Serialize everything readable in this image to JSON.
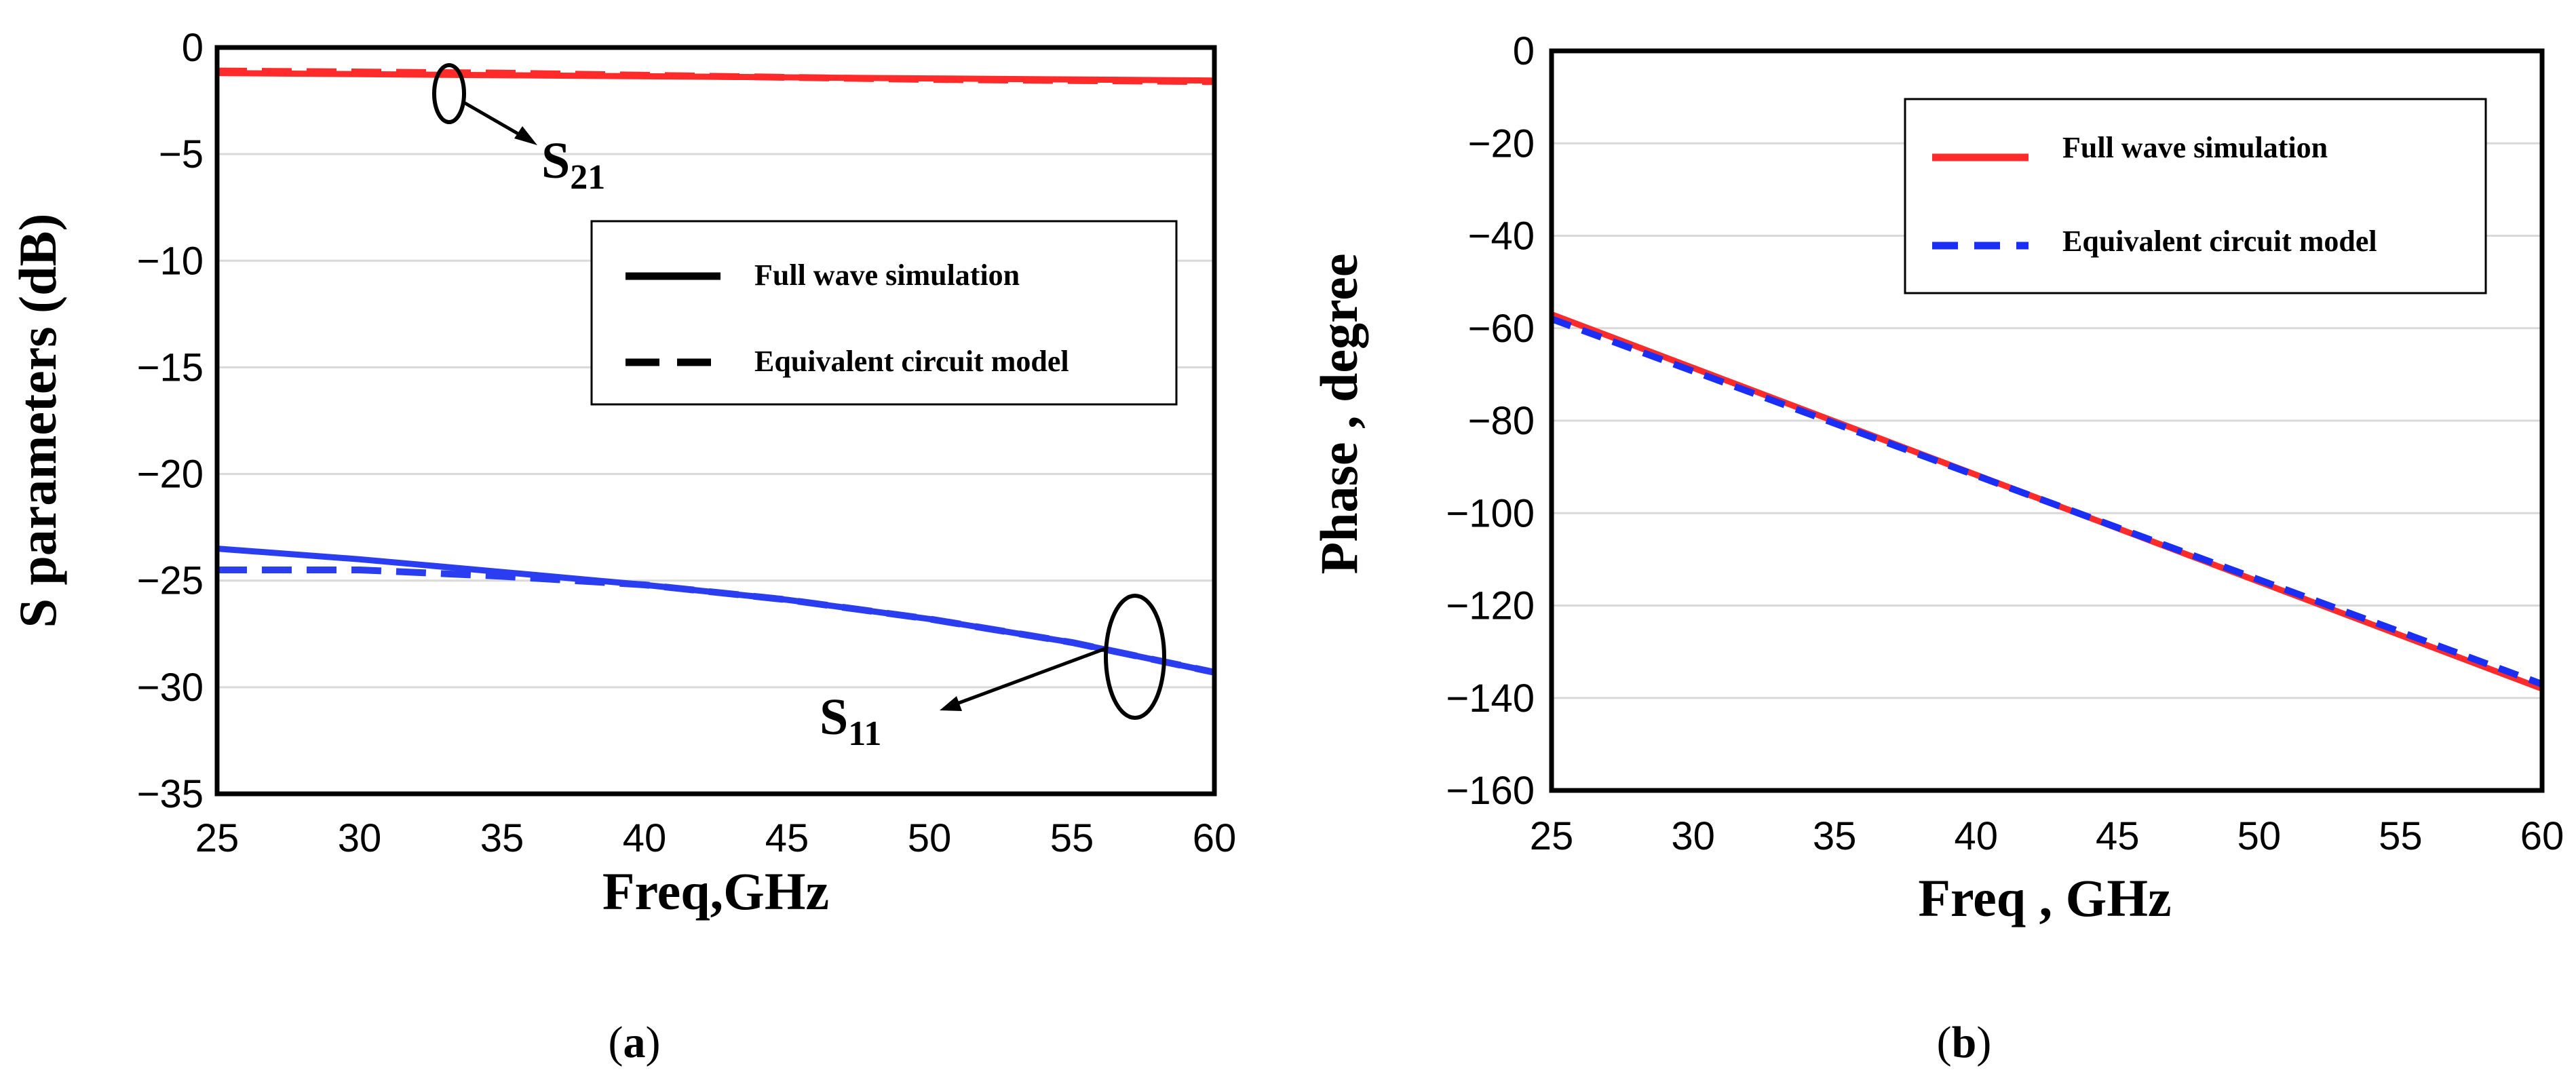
{
  "chart_data": [
    {
      "type": "line",
      "panel": "a",
      "caption_letter": "a",
      "xlabel": "Freq,GHz",
      "ylabel": "S parameters (dB)",
      "xlim": [
        25,
        60
      ],
      "ylim": [
        -35,
        0
      ],
      "xticks": [
        25,
        30,
        35,
        40,
        45,
        50,
        55,
        60
      ],
      "yticks": [
        0,
        -5,
        -10,
        -15,
        -20,
        -25,
        -30,
        -35
      ],
      "ytick_labels": [
        "0",
        "−5",
        "−10",
        "−15",
        "−20",
        "−25",
        "−30",
        "−35"
      ],
      "legend": {
        "placement": "center-right",
        "entries": [
          "Full wave simulation",
          "Equivalent circuit model"
        ]
      },
      "annotations": [
        {
          "label": "S",
          "subscript": "21",
          "x": 33.2,
          "y": -2.0
        },
        {
          "label": "S",
          "subscript": "11",
          "x": 57.3,
          "y": -28.5
        }
      ],
      "series": [
        {
          "name": "S21 Full wave simulation",
          "style": "solid",
          "color": "#ff2a2a",
          "x": [
            25,
            30,
            35,
            40,
            45,
            50,
            55,
            60
          ],
          "y": [
            -1.2,
            -1.25,
            -1.3,
            -1.35,
            -1.4,
            -1.45,
            -1.5,
            -1.55
          ]
        },
        {
          "name": "S21 Equivalent circuit model",
          "style": "dashed",
          "color": "#ff2a2a",
          "x": [
            25,
            30,
            35,
            40,
            45,
            50,
            55,
            60
          ],
          "y": [
            -1.1,
            -1.15,
            -1.2,
            -1.3,
            -1.4,
            -1.5,
            -1.55,
            -1.6
          ]
        },
        {
          "name": "S11 Full wave simulation",
          "style": "solid",
          "color": "#2a3df0",
          "x": [
            25,
            30,
            35,
            40,
            45,
            50,
            55,
            60
          ],
          "y": [
            -23.5,
            -24.0,
            -24.6,
            -25.2,
            -25.9,
            -26.8,
            -27.9,
            -29.3
          ]
        },
        {
          "name": "S11 Equivalent circuit model",
          "style": "dashed",
          "color": "#2a3df0",
          "x": [
            25,
            30,
            35,
            40,
            45,
            50,
            55,
            60
          ],
          "y": [
            -24.5,
            -24.5,
            -24.8,
            -25.2,
            -25.9,
            -26.8,
            -27.9,
            -29.3
          ]
        }
      ]
    },
    {
      "type": "line",
      "panel": "b",
      "caption_letter": "b",
      "xlabel": "Freq , GHz",
      "ylabel": "Phase , degree",
      "xlim": [
        25,
        60
      ],
      "ylim": [
        -160,
        0
      ],
      "xticks": [
        25,
        30,
        35,
        40,
        45,
        50,
        55,
        60
      ],
      "yticks": [
        0,
        -20,
        -40,
        -60,
        -80,
        -100,
        -120,
        -140,
        -160
      ],
      "ytick_labels": [
        "0",
        "−20",
        "−40",
        "−60",
        "−80",
        "−100",
        "−120",
        "−140",
        "−160"
      ],
      "legend": {
        "placement": "top-right",
        "entries": [
          "Full wave simulation",
          "Equivalent circuit model"
        ]
      },
      "series": [
        {
          "name": "Full wave simulation",
          "style": "solid",
          "color": "#ff2a2a",
          "x": [
            25,
            60
          ],
          "y": [
            -57,
            -138
          ]
        },
        {
          "name": "Equivalent circuit model",
          "style": "dashed",
          "color": "#1a2ef5",
          "x": [
            25,
            60
          ],
          "y": [
            -58,
            -137
          ]
        }
      ]
    }
  ]
}
